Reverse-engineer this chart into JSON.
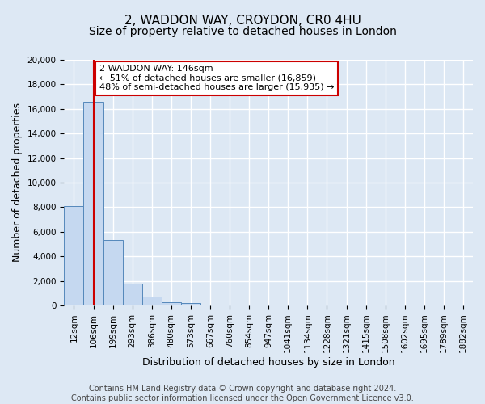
{
  "title": "2, WADDON WAY, CROYDON, CR0 4HU",
  "subtitle": "Size of property relative to detached houses in London",
  "xlabel": "Distribution of detached houses by size in London",
  "ylabel": "Number of detached properties",
  "bin_labels": [
    "12sqm",
    "106sqm",
    "199sqm",
    "293sqm",
    "386sqm",
    "480sqm",
    "573sqm",
    "667sqm",
    "760sqm",
    "854sqm",
    "947sqm",
    "1041sqm",
    "1134sqm",
    "1228sqm",
    "1321sqm",
    "1415sqm",
    "1508sqm",
    "1602sqm",
    "1695sqm",
    "1789sqm",
    "1882sqm"
  ],
  "bar_values": [
    8100,
    16600,
    5300,
    1800,
    750,
    270,
    200,
    0,
    0,
    0,
    0,
    0,
    0,
    0,
    0,
    0,
    0,
    0,
    0,
    0,
    0
  ],
  "bar_color": "#c5d8f0",
  "bar_edge_color": "#5588bb",
  "vline_color": "#cc0000",
  "vline_x": 1.0,
  "ylim": [
    0,
    20000
  ],
  "yticks": [
    0,
    2000,
    4000,
    6000,
    8000,
    10000,
    12000,
    14000,
    16000,
    18000,
    20000
  ],
  "annotation_title": "2 WADDON WAY: 146sqm",
  "annotation_line1": "← 51% of detached houses are smaller (16,859)",
  "annotation_line2": "48% of semi-detached houses are larger (15,935) →",
  "annotation_box_color": "#ffffff",
  "annotation_box_edge_color": "#cc0000",
  "footer_line1": "Contains HM Land Registry data © Crown copyright and database right 2024.",
  "footer_line2": "Contains public sector information licensed under the Open Government Licence v3.0.",
  "bg_color": "#dde8f4",
  "plot_bg_color": "#dde8f4",
  "grid_color": "#ffffff",
  "title_fontsize": 11,
  "subtitle_fontsize": 10,
  "axis_label_fontsize": 9,
  "tick_fontsize": 7.5,
  "footer_fontsize": 7
}
